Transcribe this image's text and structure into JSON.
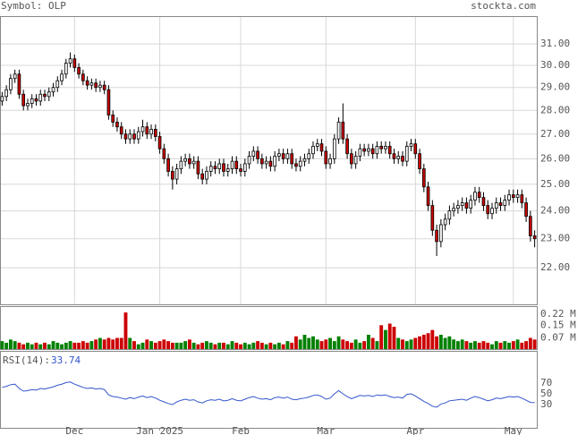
{
  "chart_data": {
    "type": "candlestick",
    "title": "Symbol: OLP",
    "source": "stockta.com",
    "log_scale": true,
    "grid": true,
    "up_color": "#ffffff",
    "down_color": "#cc0000",
    "xlim": [
      -0.5,
      125.5
    ],
    "xticks": [
      {
        "value": 17,
        "label": "Dec"
      },
      {
        "value": 37,
        "label": "Jan 2025"
      },
      {
        "value": 56,
        "label": "Feb"
      },
      {
        "value": 76,
        "label": "Mar"
      },
      {
        "value": 97,
        "label": "Apr"
      },
      {
        "value": 120,
        "label": "May"
      }
    ],
    "ylim": [
      20.8,
      32.35
    ],
    "yticks": [
      {
        "value": 31,
        "label": "31.00"
      },
      {
        "value": 30,
        "label": "30.00"
      },
      {
        "value": 29,
        "label": "29.00"
      },
      {
        "value": 28,
        "label": "28.00"
      },
      {
        "value": 27,
        "label": "27.00"
      },
      {
        "value": 26,
        "label": "26.00"
      },
      {
        "value": 25,
        "label": "25.00"
      },
      {
        "value": 24,
        "label": "24.00"
      },
      {
        "value": 23,
        "label": "23.00"
      },
      {
        "value": 22,
        "label": "22.00"
      }
    ],
    "open": [
      28.4,
      28.6,
      28.9,
      29.4,
      29.6,
      28.7,
      28.2,
      28.3,
      28.5,
      28.4,
      28.7,
      28.6,
      28.8,
      29.0,
      29.3,
      29.6,
      30.1,
      30.3,
      29.9,
      29.6,
      29.3,
      29.1,
      29.2,
      29.0,
      29.1,
      28.9,
      27.8,
      27.5,
      27.3,
      27.0,
      26.8,
      27.0,
      26.8,
      27.1,
      27.3,
      27.0,
      27.2,
      26.9,
      26.4,
      26.0,
      25.5,
      25.2,
      25.6,
      25.9,
      26.0,
      25.8,
      25.9,
      25.4,
      25.2,
      25.5,
      25.7,
      25.6,
      25.8,
      25.5,
      25.6,
      25.9,
      25.6,
      25.5,
      25.8,
      26.1,
      26.3,
      26.0,
      25.8,
      25.9,
      25.7,
      26.1,
      26.2,
      26.0,
      26.2,
      25.8,
      25.7,
      25.9,
      26.0,
      26.2,
      26.5,
      26.6,
      26.3,
      25.8,
      26.0,
      26.8,
      27.5,
      26.8,
      26.2,
      25.8,
      26.1,
      26.4,
      26.3,
      26.4,
      26.2,
      26.5,
      26.4,
      26.5,
      26.2,
      26.0,
      26.1,
      25.9,
      26.5,
      26.6,
      26.2,
      25.6,
      24.9,
      24.2,
      23.3,
      22.9,
      23.5,
      23.7,
      24.0,
      24.1,
      24.2,
      24.3,
      24.1,
      24.4,
      24.7,
      24.5,
      24.2,
      23.9,
      24.1,
      24.3,
      24.2,
      24.4,
      24.6,
      24.5,
      24.6,
      24.3,
      23.8,
      23.1
    ],
    "high": [
      28.8,
      29.1,
      29.6,
      29.8,
      29.8,
      28.9,
      28.5,
      28.7,
      28.7,
      28.9,
      28.9,
      29.0,
      29.2,
      29.5,
      29.8,
      30.3,
      30.6,
      30.5,
      30.1,
      29.8,
      29.5,
      29.4,
      29.4,
      29.3,
      29.3,
      29.1,
      28.0,
      27.7,
      27.5,
      27.2,
      27.2,
      27.2,
      27.3,
      27.6,
      27.5,
      27.4,
      27.4,
      27.1,
      26.6,
      26.2,
      25.7,
      25.8,
      26.1,
      26.2,
      26.2,
      26.1,
      26.1,
      25.6,
      25.7,
      25.9,
      25.9,
      26.0,
      26.0,
      25.8,
      26.1,
      26.1,
      25.8,
      26.0,
      26.3,
      26.5,
      26.5,
      26.2,
      26.1,
      26.1,
      26.3,
      26.4,
      26.4,
      26.4,
      26.4,
      26.0,
      26.1,
      26.2,
      26.4,
      26.7,
      26.8,
      26.8,
      26.5,
      26.2,
      27.0,
      27.7,
      28.3,
      27.0,
      26.4,
      26.3,
      26.6,
      26.6,
      26.6,
      26.6,
      26.7,
      26.7,
      26.7,
      26.7,
      26.4,
      26.3,
      26.3,
      26.7,
      26.8,
      26.8,
      26.4,
      25.8,
      25.1,
      24.4,
      23.5,
      23.7,
      23.9,
      24.2,
      24.3,
      24.4,
      24.5,
      24.5,
      24.6,
      24.9,
      24.9,
      24.7,
      24.4,
      24.3,
      24.5,
      24.5,
      24.6,
      24.8,
      24.8,
      24.8,
      24.8,
      24.5,
      24.0,
      23.3
    ],
    "low": [
      28.2,
      28.4,
      28.7,
      29.2,
      28.5,
      28.0,
      28.0,
      28.1,
      28.2,
      28.2,
      28.4,
      28.4,
      28.6,
      28.8,
      29.1,
      29.4,
      29.9,
      29.7,
      29.4,
      29.1,
      28.9,
      28.9,
      28.8,
      28.8,
      28.7,
      27.6,
      27.3,
      27.1,
      26.8,
      26.6,
      26.6,
      26.6,
      26.6,
      26.9,
      26.8,
      26.8,
      26.7,
      26.2,
      25.8,
      25.3,
      24.8,
      25.0,
      25.4,
      25.7,
      25.6,
      25.6,
      25.2,
      25.0,
      25.0,
      25.3,
      25.4,
      25.4,
      25.3,
      25.3,
      25.4,
      25.4,
      25.3,
      25.3,
      25.6,
      25.9,
      25.8,
      25.6,
      25.6,
      25.5,
      25.5,
      25.9,
      25.8,
      25.8,
      25.6,
      25.5,
      25.5,
      25.7,
      25.8,
      26.0,
      26.3,
      26.1,
      25.6,
      25.6,
      25.8,
      26.6,
      26.6,
      26.0,
      25.6,
      25.6,
      25.9,
      26.1,
      26.1,
      26.0,
      26.0,
      26.2,
      26.2,
      26.0,
      25.8,
      25.8,
      25.7,
      25.7,
      26.3,
      26.0,
      25.4,
      24.7,
      24.0,
      23.1,
      22.4,
      22.7,
      23.3,
      23.5,
      23.8,
      23.9,
      24.0,
      23.9,
      23.9,
      24.2,
      24.3,
      24.0,
      23.7,
      23.7,
      23.9,
      24.0,
      24.0,
      24.2,
      24.3,
      24.3,
      24.1,
      23.6,
      22.9,
      22.7
    ],
    "close": [
      28.6,
      28.9,
      29.4,
      29.6,
      28.7,
      28.2,
      28.3,
      28.5,
      28.4,
      28.7,
      28.6,
      28.8,
      29.0,
      29.3,
      29.6,
      30.1,
      30.3,
      29.9,
      29.6,
      29.3,
      29.1,
      29.2,
      29.0,
      29.1,
      28.9,
      27.8,
      27.5,
      27.3,
      27.0,
      26.8,
      27.0,
      26.8,
      27.1,
      27.3,
      27.0,
      27.2,
      26.9,
      26.4,
      26.0,
      25.5,
      25.2,
      25.6,
      25.9,
      26.0,
      25.8,
      25.9,
      25.4,
      25.2,
      25.5,
      25.7,
      25.6,
      25.8,
      25.5,
      25.6,
      25.9,
      25.6,
      25.5,
      25.8,
      26.1,
      26.3,
      26.0,
      25.8,
      25.9,
      25.7,
      26.1,
      26.2,
      26.0,
      26.2,
      25.8,
      25.7,
      25.9,
      26.0,
      26.2,
      26.5,
      26.6,
      26.3,
      25.8,
      26.0,
      26.8,
      27.5,
      26.8,
      26.2,
      25.8,
      26.1,
      26.4,
      26.3,
      26.4,
      26.2,
      26.5,
      26.4,
      26.5,
      26.2,
      26.0,
      26.1,
      25.9,
      26.5,
      26.6,
      26.2,
      25.6,
      24.9,
      24.2,
      23.3,
      22.9,
      23.5,
      23.7,
      24.0,
      24.1,
      24.2,
      24.3,
      24.1,
      24.4,
      24.7,
      24.5,
      24.2,
      23.9,
      24.1,
      24.3,
      24.2,
      24.4,
      24.6,
      24.5,
      24.6,
      24.3,
      23.8,
      23.1,
      23.0
    ],
    "volume": {
      "up_color": "#008000",
      "down_color": "#cc0000",
      "ylim": [
        0,
        0.27
      ],
      "yticks": [
        {
          "value": 0.22,
          "label": "0.22 M"
        },
        {
          "value": 0.15,
          "label": "0.15 M"
        },
        {
          "value": 0.07,
          "label": "0.07 M"
        }
      ],
      "values": [
        0.05,
        0.04,
        0.06,
        0.05,
        0.04,
        0.03,
        0.04,
        0.03,
        0.04,
        0.03,
        0.04,
        0.03,
        0.05,
        0.04,
        0.03,
        0.04,
        0.05,
        0.04,
        0.04,
        0.05,
        0.04,
        0.05,
        0.06,
        0.07,
        0.06,
        0.07,
        0.06,
        0.07,
        0.07,
        0.23,
        0.07,
        0.05,
        0.03,
        0.04,
        0.06,
        0.05,
        0.04,
        0.05,
        0.06,
        0.05,
        0.04,
        0.04,
        0.04,
        0.05,
        0.06,
        0.04,
        0.03,
        0.04,
        0.05,
        0.04,
        0.03,
        0.04,
        0.04,
        0.03,
        0.05,
        0.04,
        0.03,
        0.04,
        0.03,
        0.04,
        0.05,
        0.04,
        0.03,
        0.04,
        0.03,
        0.04,
        0.03,
        0.05,
        0.04,
        0.08,
        0.06,
        0.09,
        0.07,
        0.08,
        0.06,
        0.05,
        0.06,
        0.07,
        0.05,
        0.08,
        0.06,
        0.05,
        0.04,
        0.06,
        0.04,
        0.05,
        0.09,
        0.07,
        0.05,
        0.15,
        0.12,
        0.16,
        0.14,
        0.07,
        0.06,
        0.05,
        0.06,
        0.07,
        0.08,
        0.09,
        0.1,
        0.12,
        0.08,
        0.09,
        0.07,
        0.08,
        0.06,
        0.05,
        0.06,
        0.05,
        0.04,
        0.05,
        0.04,
        0.05,
        0.04,
        0.03,
        0.05,
        0.04,
        0.05,
        0.04,
        0.05,
        0.06,
        0.04,
        0.05,
        0.07,
        0.06
      ]
    },
    "rsi": {
      "label": "RSI(14):",
      "color": "#3355cc",
      "ylim": [
        -13.3,
        130
      ],
      "yticks": [
        70,
        50,
        30
      ],
      "values": [
        62,
        64,
        67,
        68,
        60,
        55,
        56,
        58,
        57,
        60,
        59,
        61,
        63,
        66,
        68,
        71,
        72,
        68,
        65,
        62,
        60,
        61,
        59,
        60,
        58,
        48,
        45,
        44,
        42,
        40,
        43,
        41,
        44,
        46,
        43,
        45,
        42,
        38,
        35,
        32,
        30,
        35,
        38,
        40,
        38,
        39,
        35,
        33,
        37,
        39,
        38,
        40,
        37,
        38,
        41,
        38,
        37,
        40,
        43,
        45,
        42,
        40,
        41,
        39,
        43,
        44,
        42,
        44,
        40,
        39,
        41,
        42,
        44,
        47,
        48,
        45,
        40,
        42,
        50,
        56,
        50,
        45,
        41,
        44,
        47,
        46,
        47,
        45,
        48,
        47,
        48,
        45,
        43,
        44,
        42,
        49,
        50,
        46,
        41,
        36,
        32,
        27,
        25,
        31,
        33,
        37,
        38,
        39,
        40,
        38,
        42,
        45,
        43,
        40,
        37,
        39,
        42,
        41,
        43,
        45,
        44,
        45,
        42,
        38,
        34,
        33.74
      ]
    }
  }
}
